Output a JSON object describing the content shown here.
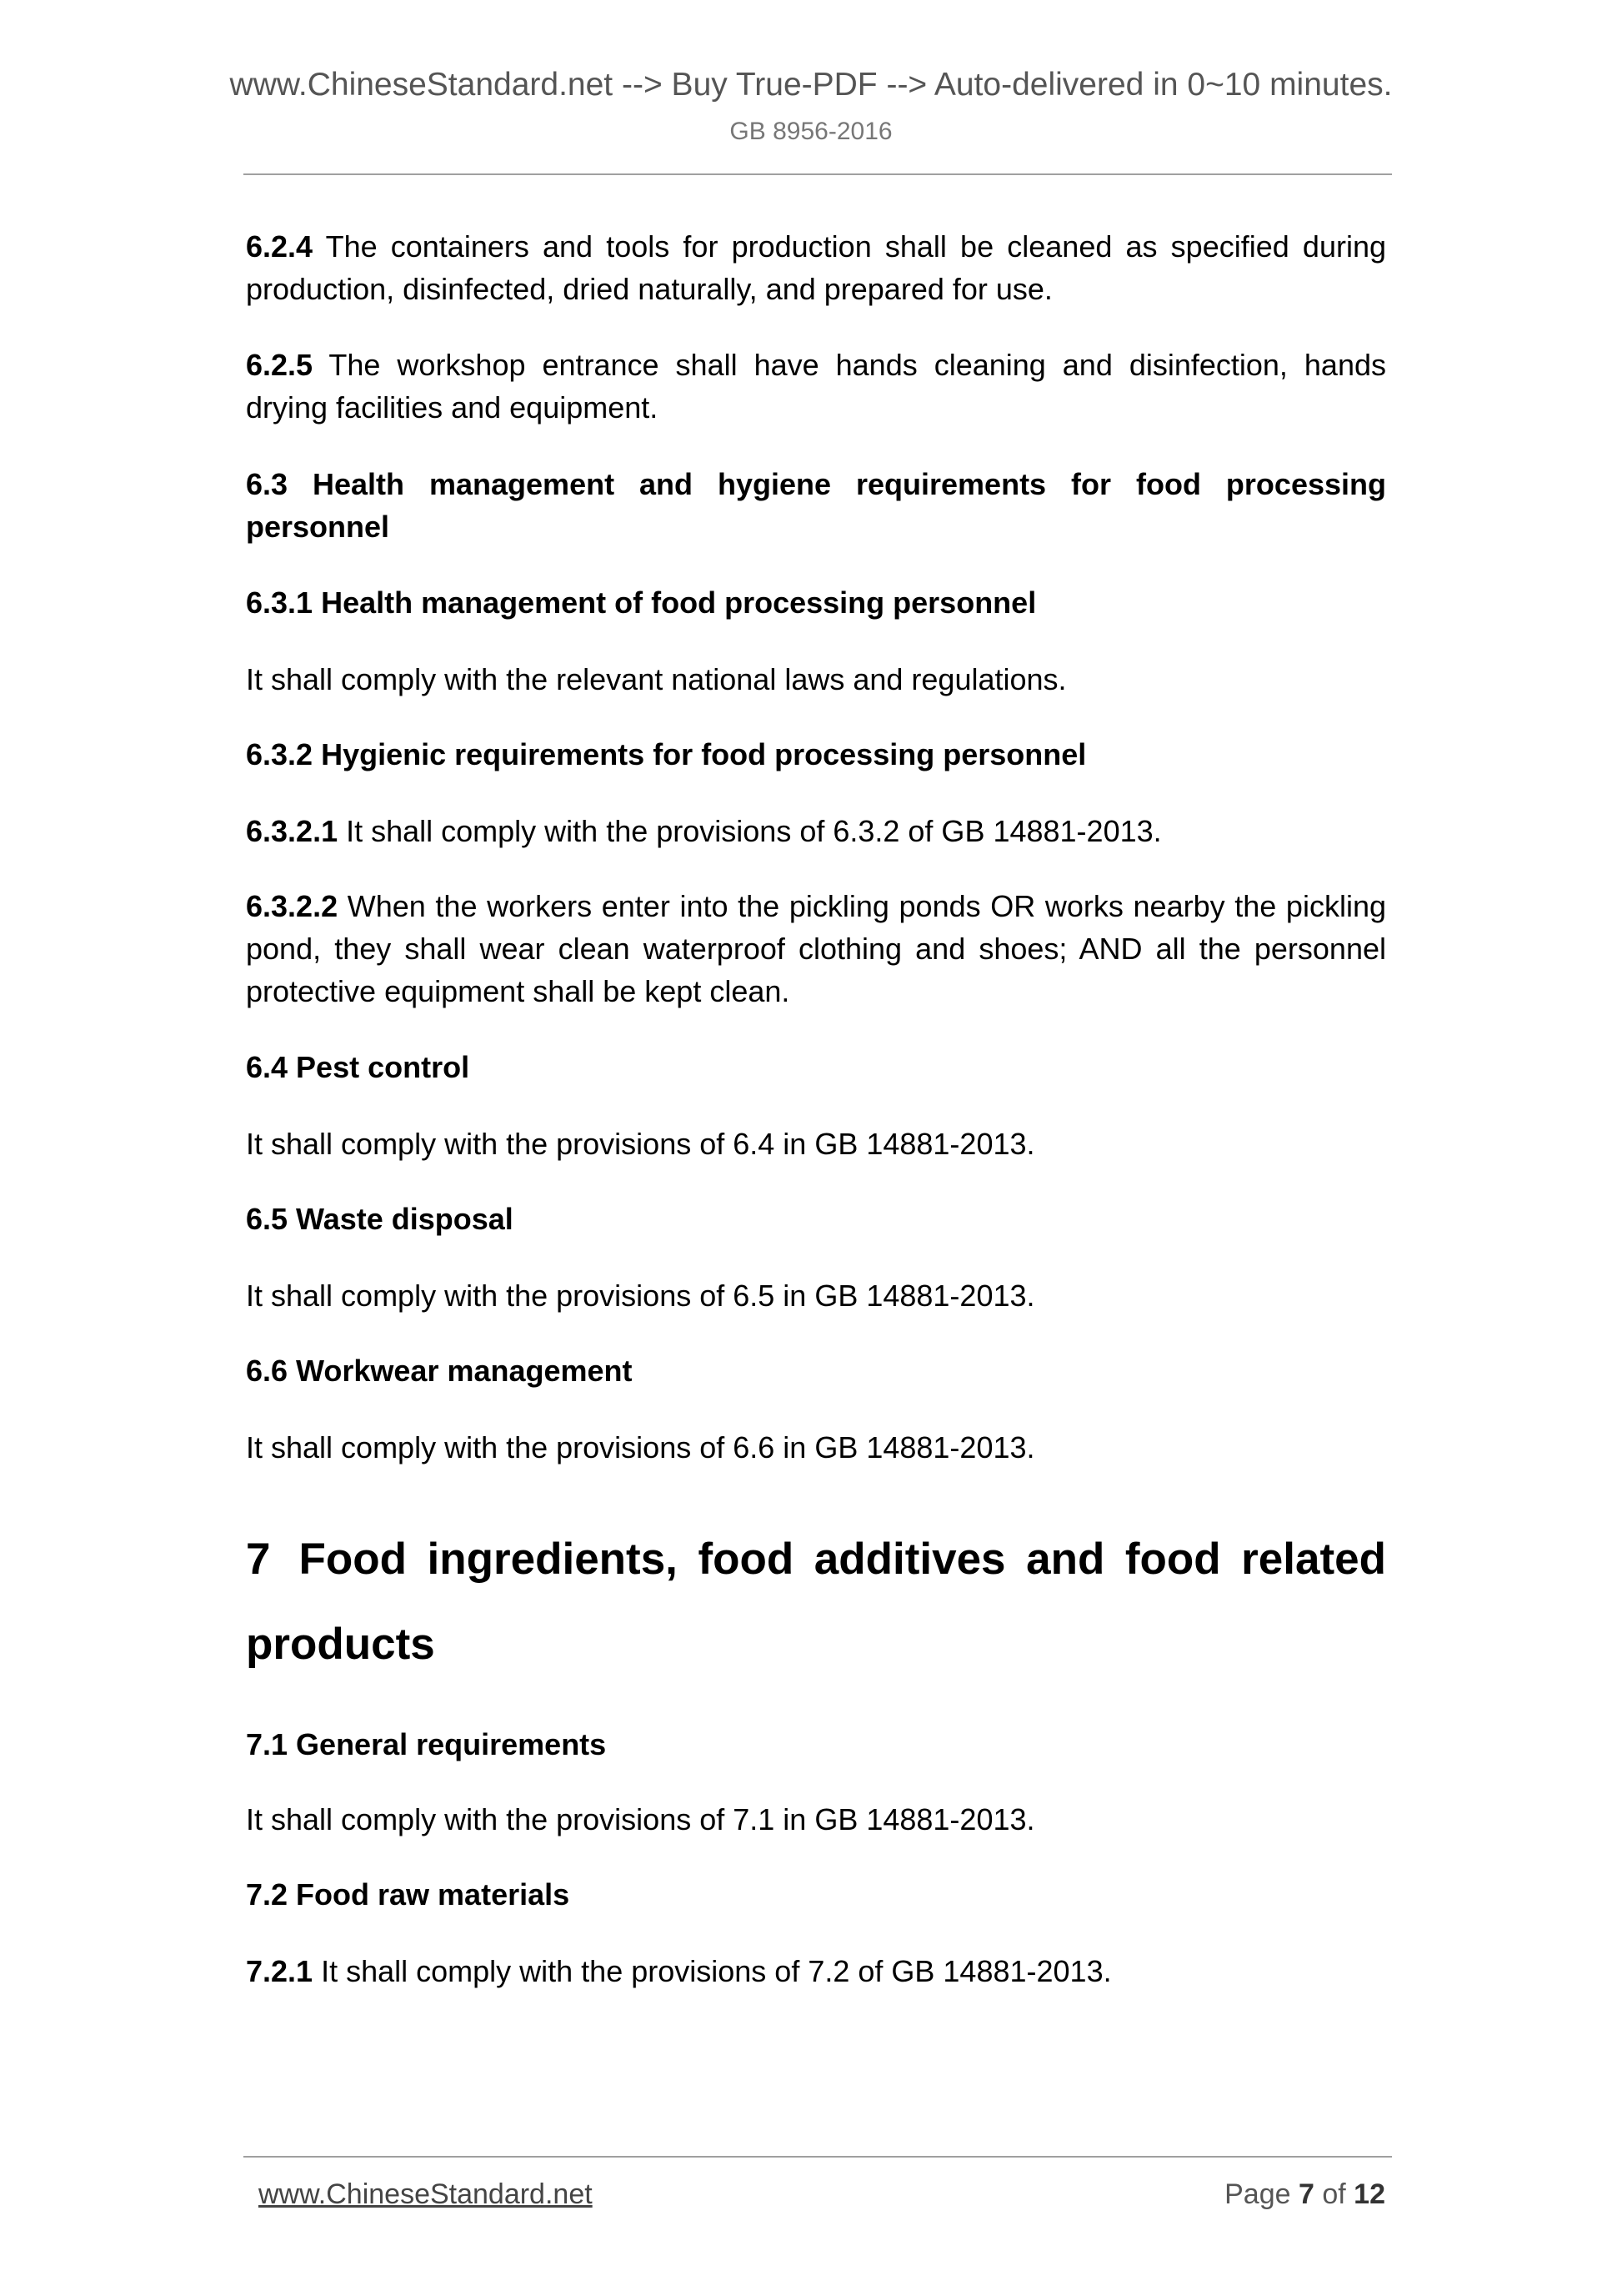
{
  "header": {
    "banner": "www.ChineseStandard.net --> Buy True-PDF --> Auto-delivered in 0~10 minutes.",
    "doc_id": "GB 8956-2016"
  },
  "paragraphs": [
    {
      "num": "6.2.4",
      "text": " The containers and tools for production shall be cleaned as specified during production, disinfected, dried naturally, and prepared for use."
    },
    {
      "num": "6.2.5",
      "text": " The workshop entrance shall have hands cleaning and disinfection, hands drying facilities and equipment."
    },
    {
      "num": "6.3 Health management and hygiene requirements for food processing personnel",
      "text": ""
    },
    {
      "num": "6.3.1 Health management of food processing personnel",
      "text": ""
    },
    {
      "num": "",
      "text": "It shall comply with the relevant national laws and regulations."
    },
    {
      "num": "6.3.2 Hygienic requirements for food processing personnel",
      "text": ""
    },
    {
      "num": "6.3.2.1",
      "text": " It shall comply with the provisions of 6.3.2 of GB 14881-2013."
    },
    {
      "num": "6.3.2.2",
      "text": " When the workers enter into the pickling ponds OR works nearby the pickling pond, they shall wear clean waterproof clothing and shoes; AND all the personnel protective equipment shall be kept clean."
    },
    {
      "num": "6.4 Pest control",
      "text": ""
    },
    {
      "num": "",
      "text": "It shall comply with the provisions of 6.4 in GB 14881-2013."
    },
    {
      "num": "6.5 Waste disposal",
      "text": ""
    },
    {
      "num": "",
      "text": "It shall comply with the provisions of 6.5 in GB 14881-2013."
    },
    {
      "num": "6.6 Workwear management",
      "text": ""
    },
    {
      "num": "",
      "text": "It shall comply with the provisions of 6.6 in GB 14881-2013."
    }
  ],
  "chapter": {
    "num": "7",
    "title": "Food ingredients, food additives and food related products"
  },
  "paragraphs2": [
    {
      "num": "7.1 General requirements",
      "text": ""
    },
    {
      "num": "",
      "text": "It shall comply with the provisions of 7.1 in GB 14881-2013."
    },
    {
      "num": "7.2 Food raw materials",
      "text": ""
    },
    {
      "num": "7.2.1",
      "text": " It shall comply with the provisions of 7.2 of GB 14881-2013."
    }
  ],
  "footer": {
    "link": "www.ChineseStandard.net",
    "page_label": "Page",
    "page": "7",
    "of_label": "of",
    "total": "12"
  }
}
